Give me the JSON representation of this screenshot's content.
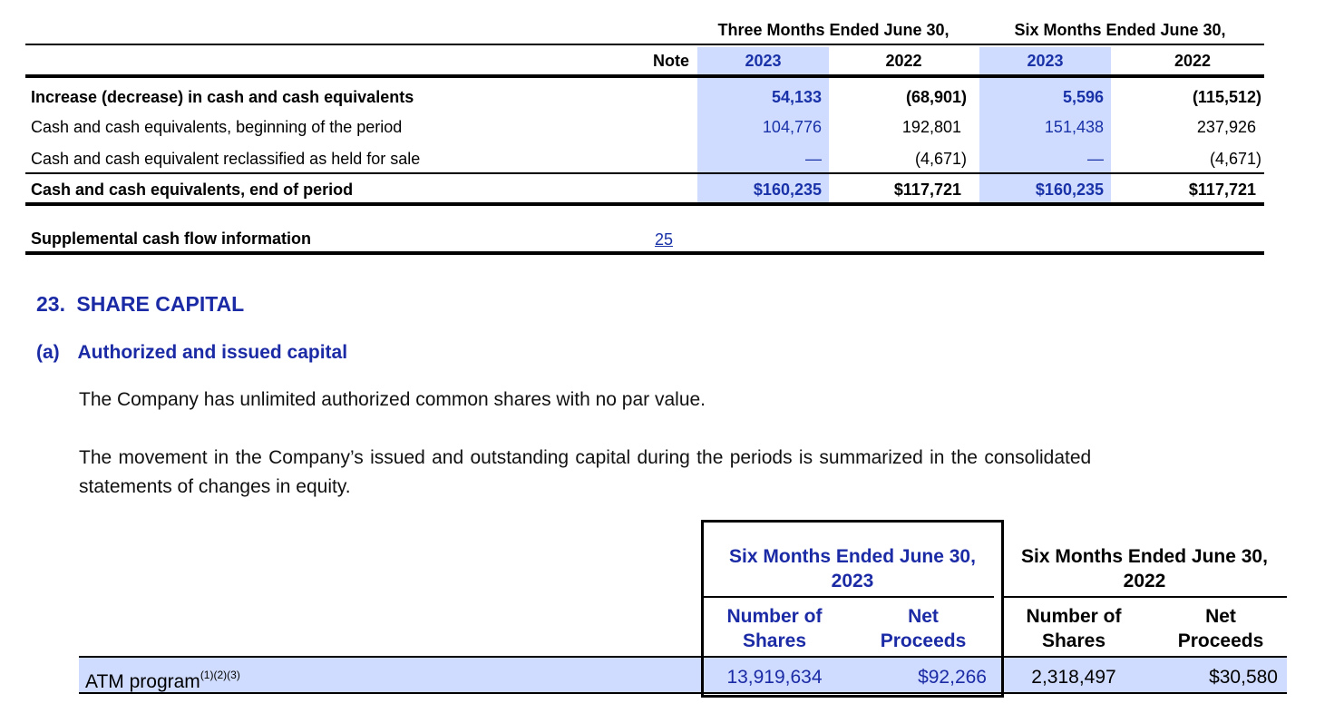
{
  "cash_table": {
    "periods": [
      {
        "label": "Three Months Ended June 30,",
        "years": [
          "2023",
          "2022"
        ]
      },
      {
        "label": "Six Months Ended June 30,",
        "years": [
          "2023",
          "2022"
        ]
      }
    ],
    "note_header": "Note",
    "rows": [
      {
        "label": "Increase (decrease) in cash and cash equivalents",
        "bold": true,
        "values": [
          "54,133",
          "(68,901)",
          "5,596",
          "(115,512)"
        ]
      },
      {
        "label": "Cash and cash equivalents, beginning of the period",
        "bold": false,
        "values": [
          "104,776",
          "192,801",
          "151,438",
          "237,926"
        ]
      },
      {
        "label": "Cash and cash equivalent reclassified as held for sale",
        "bold": false,
        "values": [
          "—",
          "(4,671)",
          "—",
          "(4,671)"
        ]
      },
      {
        "label": "Cash and cash equivalents, end of period",
        "bold": true,
        "values": [
          "$160,235",
          "$117,721",
          "$160,235",
          "$117,721"
        ]
      }
    ],
    "supplemental": {
      "label": "Supplemental cash flow information",
      "note": "25"
    }
  },
  "section": {
    "number": "23.",
    "title": "SHARE CAPITAL",
    "sub_label": "(a)",
    "sub_title": "Authorized and issued capital",
    "paragraph1": "The Company has unlimited authorized common shares with no par value.",
    "paragraph2_line1": "The movement in the Company’s issued and outstanding capital during the periods is summarized in the consolidated",
    "paragraph2_line2": "statements of changes in equity."
  },
  "share_table": {
    "period_2023_line1": "Six Months Ended June 30,",
    "period_2023_line2": "2023",
    "period_2022_line1": "Six Months Ended June 30,",
    "period_2022_line2": "2022",
    "col_shares_line1": "Number of",
    "col_shares_line2": "Shares",
    "col_proceeds_line1": "Net",
    "col_proceeds_line2": "Proceeds",
    "row": {
      "label": "ATM program",
      "superscript": "(1)(2)(3)",
      "values": [
        "13,919,634",
        "$92,266",
        "2,318,497",
        "$30,580"
      ]
    }
  },
  "colors": {
    "highlight": "#cfdcff",
    "heading_blue": "#1b2aa5",
    "value_blue": "#1a32a8"
  }
}
